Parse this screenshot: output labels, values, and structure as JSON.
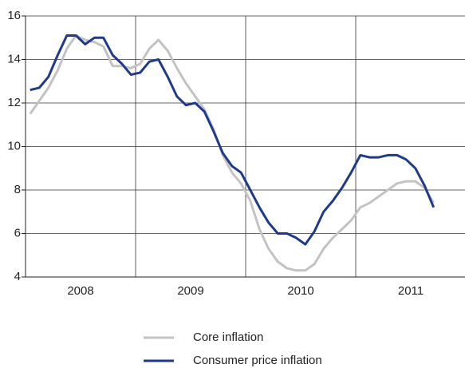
{
  "chart_data": {
    "type": "line",
    "x": [
      2008.042,
      2008.125,
      2008.208,
      2008.292,
      2008.375,
      2008.458,
      2008.542,
      2008.625,
      2008.708,
      2008.792,
      2008.875,
      2008.958,
      2009.042,
      2009.125,
      2009.208,
      2009.292,
      2009.375,
      2009.458,
      2009.542,
      2009.625,
      2009.708,
      2009.792,
      2009.875,
      2009.958,
      2010.042,
      2010.125,
      2010.208,
      2010.292,
      2010.375,
      2010.458,
      2010.542,
      2010.625,
      2010.708,
      2010.792,
      2010.875,
      2010.958,
      2011.042,
      2011.125,
      2011.208,
      2011.292,
      2011.375,
      2011.458,
      2011.542,
      2011.625,
      2011.708
    ],
    "series": [
      {
        "name": "Core inflation",
        "color": "#c3c3c3",
        "values": [
          11.5,
          12.1,
          12.7,
          13.5,
          14.5,
          15.1,
          14.9,
          14.8,
          14.6,
          13.7,
          13.7,
          13.6,
          13.8,
          14.5,
          14.9,
          14.4,
          13.6,
          12.9,
          12.3,
          11.7,
          10.8,
          9.6,
          8.8,
          8.3,
          7.5,
          6.2,
          5.3,
          4.7,
          4.4,
          4.3,
          4.3,
          4.6,
          5.3,
          5.8,
          6.2,
          6.6,
          7.2,
          7.4,
          7.7,
          8.0,
          8.3,
          8.4,
          8.4,
          8.1,
          7.4
        ]
      },
      {
        "name": "Consumer price inflation",
        "color": "#1f3a8c",
        "values": [
          12.6,
          12.7,
          13.2,
          14.2,
          15.1,
          15.1,
          14.7,
          15.0,
          15.0,
          14.2,
          13.8,
          13.3,
          13.4,
          13.9,
          14.0,
          13.2,
          12.3,
          11.9,
          12.0,
          11.6,
          10.7,
          9.7,
          9.1,
          8.8,
          8.0,
          7.2,
          6.5,
          6.0,
          6.0,
          5.8,
          5.5,
          6.1,
          7.0,
          7.5,
          8.1,
          8.8,
          9.6,
          9.5,
          9.5,
          9.6,
          9.6,
          9.4,
          9.0,
          8.2,
          7.2
        ]
      }
    ],
    "xlim": [
      2008,
      2012
    ],
    "xticks": [
      {
        "value": 2008.5,
        "label": "2008"
      },
      {
        "value": 2009.5,
        "label": "2009"
      },
      {
        "value": 2010.5,
        "label": "2010"
      },
      {
        "value": 2011.5,
        "label": "2011"
      }
    ],
    "xgrid": [
      2009,
      2010,
      2011
    ],
    "ylim": [
      4,
      16
    ],
    "yticks": [
      4,
      6,
      8,
      10,
      12,
      14,
      16
    ],
    "grid": true,
    "legend": "bottom"
  }
}
